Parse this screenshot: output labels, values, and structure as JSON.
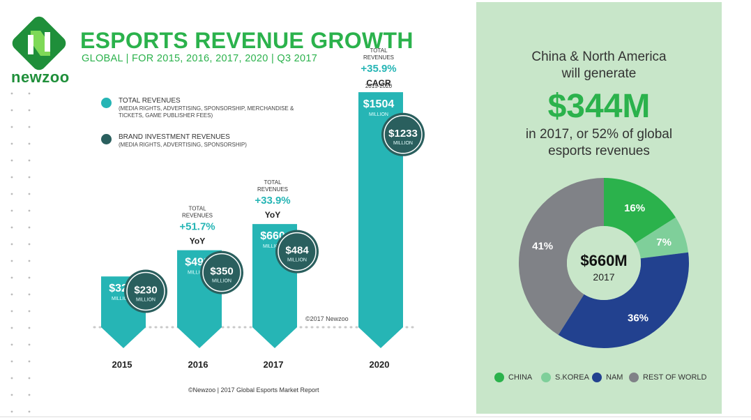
{
  "brand": {
    "name": "newzoo",
    "green": "#2bb24c",
    "dark_green": "#1f8f3a"
  },
  "header": {
    "title": "ESPORTS REVENUE GROWTH",
    "subtitle": "GLOBAL | FOR 2015, 2016, 2017, 2020 | Q3 2017"
  },
  "legend": [
    {
      "label": "TOTAL REVENUES",
      "sub": "(MEDIA RIGHTS, ADVERTISING, SPONSORSHIP, MERCHANDISE & TICKETS, GAME PUBLISHER FEES)",
      "color": "#26b5b5"
    },
    {
      "label": "BRAND INVESTMENT REVENUES",
      "sub": "(MEDIA RIGHTS, ADVERTISING, SPONSORSHIP)",
      "color": "#2a5f5e"
    }
  ],
  "chart_data": [
    {
      "type": "bar",
      "categories": [
        "2015",
        "2016",
        "2017",
        "2020"
      ],
      "series": [
        {
          "name": "TOTAL REVENUES",
          "values": [
            325,
            493,
            660,
            1504
          ],
          "value_labels": [
            "$325",
            "$493",
            "$660",
            "$1504"
          ],
          "color": "#26b5b5"
        },
        {
          "name": "BRAND INVESTMENT REVENUES",
          "values": [
            230,
            350,
            484,
            1233
          ],
          "value_labels": [
            "$230",
            "$350",
            "$484",
            "$1233"
          ],
          "color": "#2a5f5e"
        }
      ],
      "unit_label": "MILLION",
      "growth": [
        null,
        {
          "heading": [
            "TOTAL",
            "REVENUES"
          ],
          "pct": "+51.7%",
          "basis": "YoY",
          "note": ""
        },
        {
          "heading": [
            "TOTAL",
            "REVENUES"
          ],
          "pct": "+33.9%",
          "basis": "YoY",
          "note": ""
        },
        {
          "heading": [
            "TOTAL",
            "REVENUES"
          ],
          "pct": "+35.9%",
          "basis": "CAGR",
          "note": "2015-2020"
        }
      ],
      "copyright": "©2017 Newzoo"
    },
    {
      "type": "pie",
      "labels": [
        "CHINA",
        "S.KOREA",
        "NAM",
        "REST OF WORLD"
      ],
      "values": [
        16,
        7,
        36,
        41
      ],
      "value_labels": [
        "16%",
        "7%",
        "36%",
        "41%"
      ],
      "colors": [
        "#2bb24c",
        "#7fcf9a",
        "#22418f",
        "#808287"
      ],
      "center_value": "$660M",
      "center_sub": "2017",
      "legend_position": "bottom"
    }
  ],
  "panel": {
    "line1": "China & North America",
    "line2": "will generate",
    "big": "$344M",
    "line3": "in 2017, or 52% of global",
    "line4": "esports revenues"
  },
  "footer": "©Newzoo | 2017 Global Esports Market Report"
}
